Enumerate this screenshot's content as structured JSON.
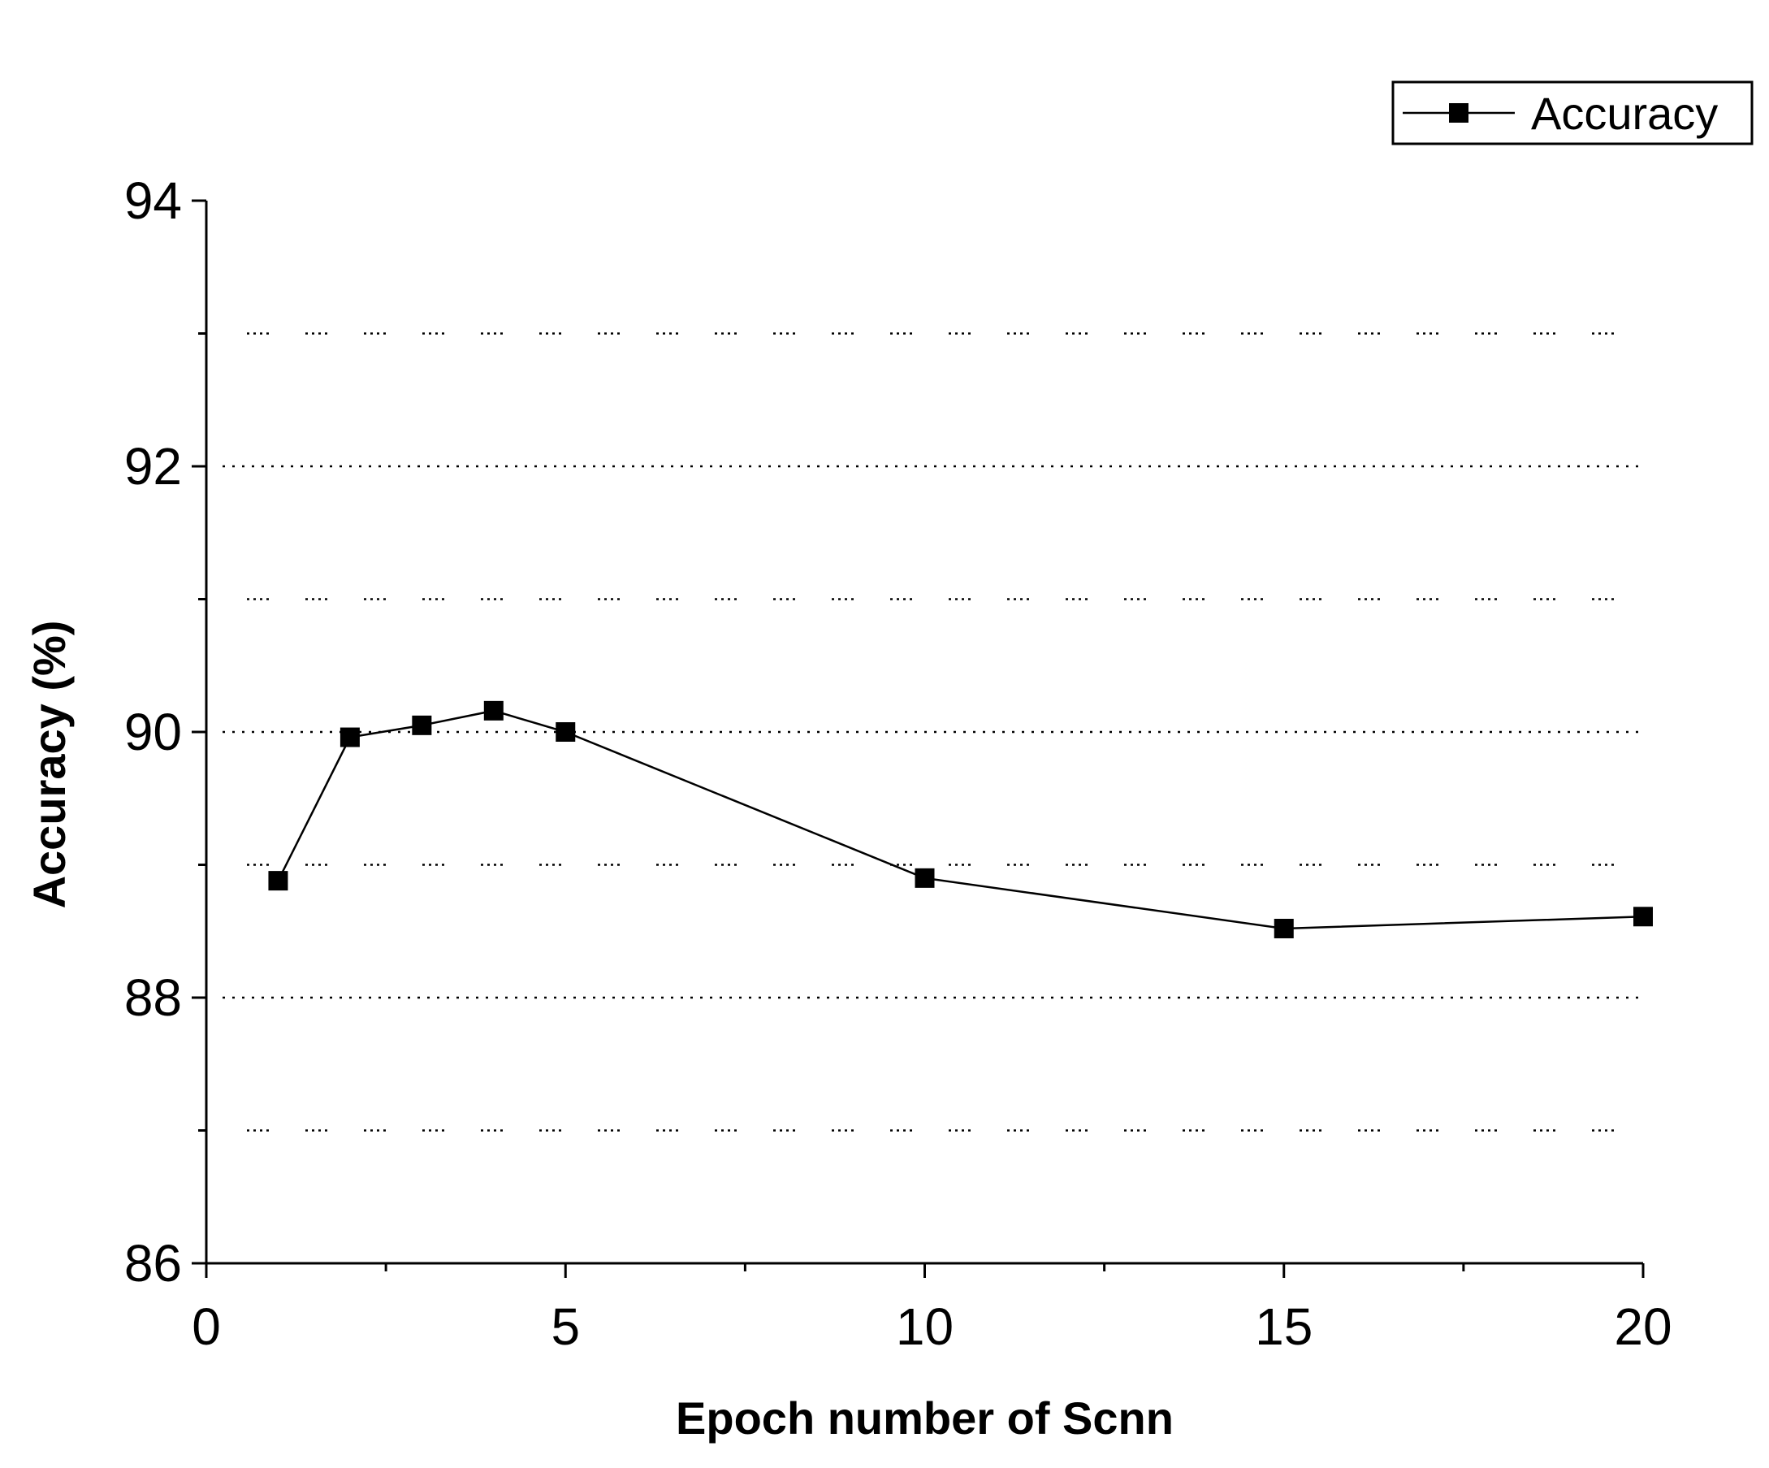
{
  "chart_data": {
    "type": "line",
    "title": "",
    "xlabel": "Epoch number of Scnn",
    "ylabel": "Accuracy (%)",
    "xlim": [
      0,
      20
    ],
    "ylim": [
      86,
      94
    ],
    "x_ticks": [
      0,
      5,
      10,
      15,
      20
    ],
    "x_tick_labels": [
      "0",
      "5",
      "10",
      "15",
      "20"
    ],
    "x_minor_ticks": [
      2.5,
      7.5,
      12.5,
      17.5
    ],
    "y_ticks": [
      86,
      88,
      90,
      92,
      94
    ],
    "y_tick_labels": [
      "86",
      "88",
      "90",
      "92",
      "94"
    ],
    "y_minor_ticks": [
      87,
      89,
      91,
      93
    ],
    "grid": true,
    "legend_position": "top-right",
    "series": [
      {
        "name": "Accuracy",
        "marker": "square",
        "color": "#000000",
        "x": [
          1,
          2,
          3,
          4,
          5,
          10,
          15,
          20
        ],
        "y": [
          88.88,
          89.96,
          90.05,
          90.16,
          90.0,
          88.9,
          88.52,
          88.61
        ]
      }
    ]
  }
}
